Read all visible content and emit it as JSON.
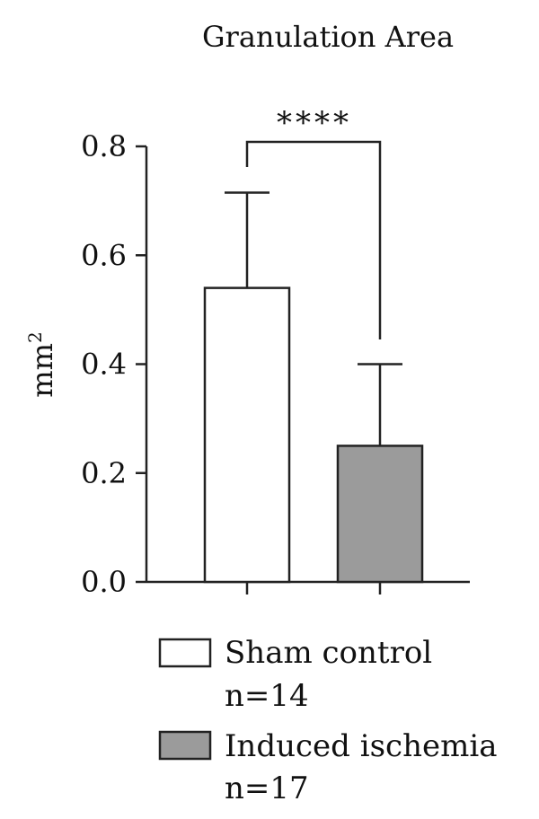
{
  "chart_data": {
    "type": "bar",
    "title": "Granulation Area",
    "xlabel": "",
    "ylabel": "mm",
    "ylabel_superscript": "2",
    "ylim": [
      0,
      0.8
    ],
    "yticks": [
      "0.0",
      "0.2",
      "0.4",
      "0.6",
      "0.8"
    ],
    "grid": false,
    "legend_placement": "bottom",
    "bars": [
      {
        "legend": "Sham control",
        "n_label": "n=14",
        "value": 0.54,
        "error_upper": 0.715,
        "color": "#ffffff"
      },
      {
        "legend": "Induced ischemia",
        "n_label": "n=17",
        "value": 0.25,
        "error_upper": 0.4,
        "color": "#9b9b9b"
      }
    ],
    "significance": "****"
  }
}
